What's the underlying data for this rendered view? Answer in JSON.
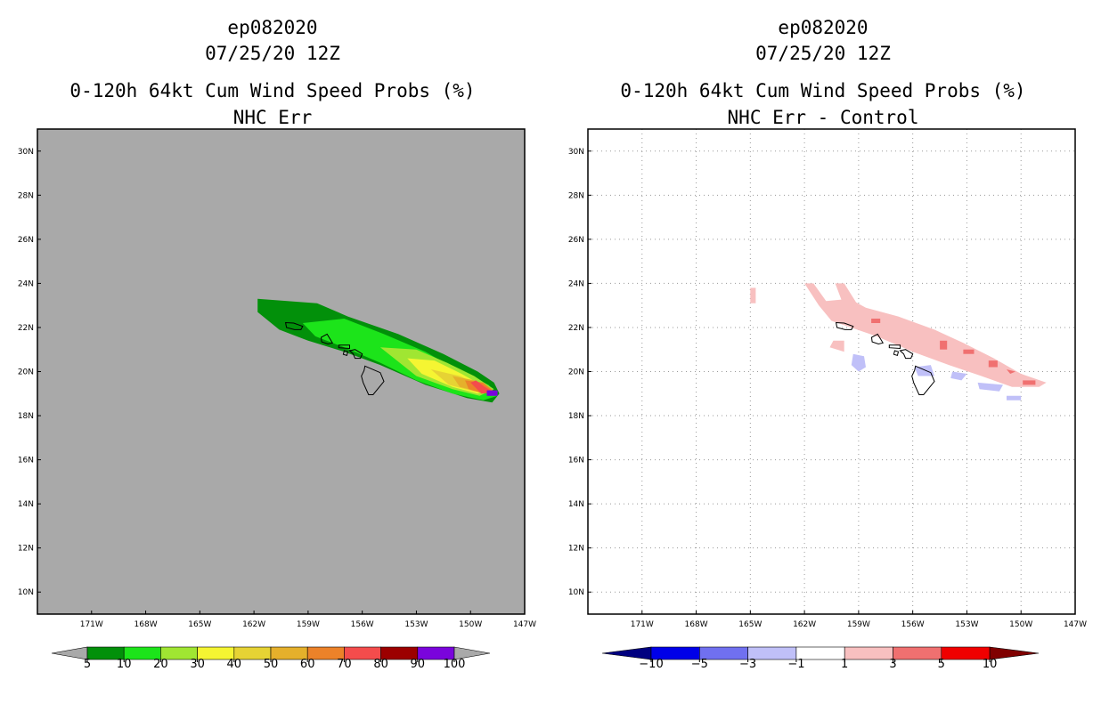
{
  "chart_data": [
    {
      "type": "map",
      "title": [
        "ep082020",
        "07/25/20 12Z",
        "0-120h 64kt Cum Wind Speed Probs (%)",
        "NHC Err"
      ],
      "x_ticks": [
        "171W",
        "168W",
        "165W",
        "162W",
        "159W",
        "156W",
        "153W",
        "150W",
        "147W"
      ],
      "y_ticks": [
        "30N",
        "28N",
        "26N",
        "24N",
        "22N",
        "20N",
        "18N",
        "16N",
        "14N",
        "12N",
        "10N"
      ],
      "xlim": [
        -174.0,
        -147.0
      ],
      "ylim": [
        9.0,
        31.0
      ],
      "background": "#a9a9a9",
      "grid": false,
      "colorbar": {
        "labels": [
          "5",
          "10",
          "20",
          "30",
          "40",
          "50",
          "60",
          "70",
          "80",
          "90",
          "100"
        ],
        "colors": [
          "#02900a",
          "#1ce41a",
          "#a0e632",
          "#f5f532",
          "#e6d334",
          "#e5b02b",
          "#ec8229",
          "#f44c4c",
          "#9c0000",
          "#7a04dc"
        ],
        "low_color": "#a9a9a9",
        "high_color": "#a9a9a9"
      },
      "contours": [
        {
          "level": "5-10",
          "color": "#02900a",
          "points": [
            [
              -161.8,
              23.3
            ],
            [
              -158.5,
              23.1
            ],
            [
              -156.8,
              22.5
            ],
            [
              -154.0,
              21.7
            ],
            [
              -151.5,
              20.8
            ],
            [
              -149.6,
              20.0
            ],
            [
              -148.7,
              19.5
            ],
            [
              -148.4,
              19.0
            ],
            [
              -148.8,
              18.6
            ],
            [
              -150.2,
              18.8
            ],
            [
              -152.5,
              19.4
            ],
            [
              -155.0,
              20.3
            ],
            [
              -157.0,
              20.9
            ],
            [
              -159.0,
              21.4
            ],
            [
              -160.6,
              21.9
            ],
            [
              -161.8,
              22.7
            ]
          ]
        },
        {
          "level": "10-20",
          "color": "#1ce41a",
          "points": [
            [
              -159.3,
              22.2
            ],
            [
              -157.0,
              22.4
            ],
            [
              -154.8,
              21.7
            ],
            [
              -152.5,
              20.9
            ],
            [
              -150.6,
              20.0
            ],
            [
              -149.0,
              19.4
            ],
            [
              -148.5,
              18.9
            ],
            [
              -149.3,
              18.7
            ],
            [
              -151.0,
              19.0
            ],
            [
              -153.0,
              19.6
            ],
            [
              -155.0,
              20.4
            ],
            [
              -157.0,
              21.1
            ],
            [
              -158.6,
              21.6
            ]
          ]
        },
        {
          "level": "20-30",
          "color": "#a0e632",
          "points": [
            [
              -155.0,
              21.1
            ],
            [
              -153.0,
              21.0
            ],
            [
              -151.3,
              20.4
            ],
            [
              -149.8,
              19.8
            ],
            [
              -148.7,
              19.2
            ],
            [
              -149.5,
              18.9
            ],
            [
              -151.0,
              19.2
            ],
            [
              -153.0,
              19.8
            ]
          ]
        },
        {
          "level": "30-40",
          "color": "#f5f532",
          "points": [
            [
              -153.5,
              20.6
            ],
            [
              -152.0,
              20.5
            ],
            [
              -150.5,
              19.9
            ],
            [
              -149.0,
              19.2
            ],
            [
              -149.6,
              19.0
            ],
            [
              -151.0,
              19.3
            ],
            [
              -152.7,
              19.9
            ]
          ]
        },
        {
          "level": "40-50",
          "color": "#e6d334",
          "points": [
            [
              -152.2,
              20.1
            ],
            [
              -150.6,
              19.8
            ],
            [
              -149.0,
              19.2
            ],
            [
              -149.8,
              19.1
            ],
            [
              -151.2,
              19.4
            ]
          ]
        },
        {
          "level": "50-60",
          "color": "#e5b02b",
          "points": [
            [
              -151.0,
              19.8
            ],
            [
              -149.8,
              19.6
            ],
            [
              -148.8,
              19.2
            ],
            [
              -149.6,
              19.1
            ],
            [
              -150.6,
              19.3
            ]
          ]
        },
        {
          "level": "60-70",
          "color": "#ec8229",
          "points": [
            [
              -150.3,
              19.6
            ],
            [
              -149.3,
              19.5
            ],
            [
              -148.7,
              19.1
            ],
            [
              -149.5,
              19.05
            ],
            [
              -150.1,
              19.2
            ]
          ]
        },
        {
          "level": "70-80",
          "color": "#f44c4c",
          "points": [
            [
              -150.0,
              19.5
            ],
            [
              -149.7,
              19.6
            ],
            [
              -149.2,
              19.3
            ],
            [
              -148.7,
              19.05
            ],
            [
              -149.4,
              19.0
            ]
          ]
        },
        {
          "level": "90-100",
          "color": "#7a04dc",
          "points": [
            [
              -149.1,
              19.15
            ],
            [
              -148.5,
              19.15
            ],
            [
              -148.5,
              18.9
            ],
            [
              -149.1,
              18.9
            ]
          ]
        }
      ]
    },
    {
      "type": "map",
      "title": [
        "ep082020",
        "07/25/20 12Z",
        "0-120h 64kt Cum Wind Speed Probs (%)",
        "NHC Err - Control"
      ],
      "x_ticks": [
        "171W",
        "168W",
        "165W",
        "162W",
        "159W",
        "156W",
        "153W",
        "150W",
        "147W"
      ],
      "y_ticks": [
        "30N",
        "28N",
        "26N",
        "24N",
        "22N",
        "20N",
        "18N",
        "16N",
        "14N",
        "12N",
        "10N"
      ],
      "xlim": [
        -174.0,
        -147.0
      ],
      "ylim": [
        9.0,
        31.0
      ],
      "background": "#ffffff",
      "grid": true,
      "colorbar": {
        "labels": [
          "-10",
          "-5",
          "-3",
          "-1",
          "1",
          "3",
          "5",
          "10"
        ],
        "colors": [
          "#0000e8",
          "#7070f0",
          "#c0c0f8",
          "#ffffff",
          "#f8c0c0",
          "#f07070",
          "#f00000"
        ],
        "low_color": "#000080",
        "high_color": "#800000"
      },
      "contours": [
        {
          "level": "1-3",
          "color": "#f8c0c0",
          "points": [
            [
              -162.0,
              24.0
            ],
            [
              -161.5,
              24.0
            ],
            [
              -160.8,
              23.2
            ],
            [
              -159.5,
              23.3
            ],
            [
              -158.6,
              22.9
            ],
            [
              -156.8,
              22.5
            ],
            [
              -154.8,
              21.9
            ],
            [
              -153.2,
              21.3
            ],
            [
              -151.5,
              20.6
            ],
            [
              -150.0,
              19.9
            ],
            [
              -148.6,
              19.5
            ],
            [
              -149.0,
              19.3
            ],
            [
              -150.5,
              19.3
            ],
            [
              -152.2,
              19.8
            ],
            [
              -154.0,
              20.3
            ],
            [
              -156.0,
              20.9
            ],
            [
              -158.0,
              21.6
            ],
            [
              -160.5,
              22.3
            ],
            [
              -161.2,
              23.0
            ]
          ]
        },
        {
          "level": "1-3",
          "color": "#f8c0c0",
          "points": [
            [
              -160.3,
              24.0
            ],
            [
              -159.8,
              24.0
            ],
            [
              -158.8,
              22.7
            ],
            [
              -159.6,
              22.5
            ]
          ]
        },
        {
          "level": "1-3",
          "color": "#f8c0c0",
          "points": [
            [
              -160.4,
              21.4
            ],
            [
              -159.8,
              21.4
            ],
            [
              -159.8,
              20.9
            ],
            [
              -160.6,
              21.1
            ]
          ]
        },
        {
          "level": "1-3",
          "color": "#f8c0c0",
          "points": [
            [
              -165.0,
              23.8
            ],
            [
              -164.7,
              23.8
            ],
            [
              -164.7,
              23.1
            ],
            [
              -165.0,
              23.1
            ]
          ]
        },
        {
          "level": "3-5",
          "color": "#f07070",
          "points": [
            [
              -154.5,
              21.4
            ],
            [
              -154.1,
              21.4
            ],
            [
              -154.1,
              21.0
            ],
            [
              -154.5,
              21.0
            ]
          ]
        },
        {
          "level": "3-5",
          "color": "#f07070",
          "points": [
            [
              -151.8,
              20.5
            ],
            [
              -151.3,
              20.5
            ],
            [
              -151.3,
              20.2
            ],
            [
              -151.8,
              20.2
            ]
          ]
        },
        {
          "level": "3-5",
          "color": "#f07070",
          "points": [
            [
              -150.8,
              20.1
            ],
            [
              -150.3,
              20.0
            ],
            [
              -150.6,
              19.9
            ]
          ]
        },
        {
          "level": "3-5",
          "color": "#f07070",
          "points": [
            [
              -149.9,
              19.6
            ],
            [
              -149.2,
              19.6
            ],
            [
              -149.2,
              19.4
            ],
            [
              -149.9,
              19.4
            ]
          ]
        },
        {
          "level": "3-5",
          "color": "#f07070",
          "points": [
            [
              -153.2,
              21.0
            ],
            [
              -152.6,
              21.0
            ],
            [
              -152.6,
              20.8
            ],
            [
              -153.2,
              20.8
            ]
          ]
        },
        {
          "level": "3-5",
          "color": "#f07070",
          "points": [
            [
              -158.3,
              22.4
            ],
            [
              -157.8,
              22.4
            ],
            [
              -157.8,
              22.2
            ],
            [
              -158.3,
              22.2
            ]
          ]
        },
        {
          "level": "-3--1",
          "color": "#c0c0f8",
          "points": [
            [
              -159.3,
              20.8
            ],
            [
              -158.7,
              20.7
            ],
            [
              -158.6,
              20.2
            ],
            [
              -159.0,
              20.0
            ],
            [
              -159.4,
              20.3
            ]
          ]
        },
        {
          "level": "-3--1",
          "color": "#c0c0f8",
          "points": [
            [
              -155.9,
              20.2
            ],
            [
              -155.0,
              20.3
            ],
            [
              -154.8,
              19.8
            ],
            [
              -155.7,
              19.8
            ]
          ]
        },
        {
          "level": "-3--1",
          "color": "#c0c0f8",
          "points": [
            [
              -153.8,
              20.0
            ],
            [
              -153.0,
              19.9
            ],
            [
              -153.3,
              19.6
            ],
            [
              -153.9,
              19.7
            ]
          ]
        },
        {
          "level": "-3--1",
          "color": "#c0c0f8",
          "points": [
            [
              -152.4,
              19.5
            ],
            [
              -151.0,
              19.4
            ],
            [
              -151.2,
              19.1
            ],
            [
              -152.3,
              19.2
            ]
          ]
        },
        {
          "level": "-3--1",
          "color": "#c0c0f8",
          "points": [
            [
              -150.8,
              18.9
            ],
            [
              -150.0,
              18.9
            ],
            [
              -150.0,
              18.7
            ],
            [
              -150.8,
              18.7
            ]
          ]
        }
      ]
    }
  ]
}
